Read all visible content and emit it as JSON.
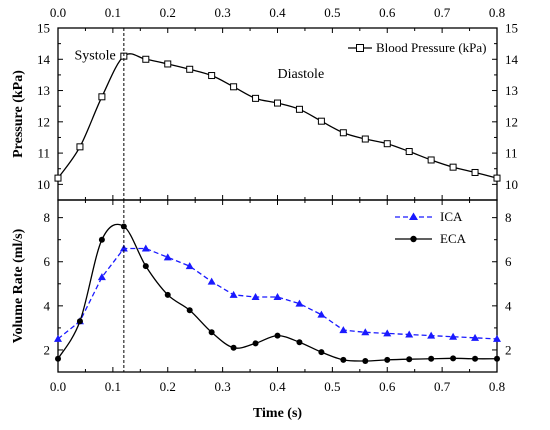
{
  "chart_data": [
    {
      "type": "line",
      "ylabel": "Pressure (kPa)",
      "xlim": [
        0,
        0.8
      ],
      "ylim": [
        9.5,
        15
      ],
      "x_ticks": [
        "0.0",
        "0.1",
        "0.2",
        "0.3",
        "0.4",
        "0.5",
        "0.6",
        "0.7",
        "0.8"
      ],
      "y_ticks": [
        "10",
        "11",
        "12",
        "13",
        "14",
        "15"
      ],
      "y_tick_values": [
        10,
        11,
        12,
        13,
        14,
        15
      ],
      "annotations": [
        {
          "text": "Systole",
          "x": 0.03,
          "y": 14.0
        },
        {
          "text": "Diastole",
          "x": 0.4,
          "y": 13.4
        }
      ],
      "series": [
        {
          "name": "Blood Pressure (kPa)",
          "color": "#000000",
          "marker": "open-square",
          "x": [
            0.0,
            0.04,
            0.08,
            0.12,
            0.16,
            0.2,
            0.24,
            0.28,
            0.32,
            0.36,
            0.4,
            0.44,
            0.48,
            0.52,
            0.56,
            0.6,
            0.64,
            0.68,
            0.72,
            0.76,
            0.8
          ],
          "y": [
            10.2,
            11.2,
            12.8,
            14.1,
            14.0,
            13.85,
            13.68,
            13.48,
            13.12,
            12.75,
            12.6,
            12.4,
            12.02,
            11.65,
            11.45,
            11.3,
            11.05,
            10.78,
            10.55,
            10.38,
            10.2
          ]
        }
      ],
      "legend": "top-right"
    },
    {
      "type": "line",
      "xlabel": "Time (s)",
      "ylabel": "Volume Rate (ml/s)",
      "xlim": [
        0,
        0.8
      ],
      "ylim": [
        1,
        8.8
      ],
      "x_ticks": [
        "0.0",
        "0.1",
        "0.2",
        "0.3",
        "0.4",
        "0.5",
        "0.6",
        "0.7",
        "0.8"
      ],
      "y_ticks": [
        "2",
        "4",
        "6",
        "8"
      ],
      "y_tick_values": [
        2,
        4,
        6,
        8
      ],
      "series": [
        {
          "name": "ICA",
          "color": "#1a1aff",
          "marker": "filled-triangle",
          "line_style": "dashed",
          "x": [
            0.0,
            0.04,
            0.08,
            0.12,
            0.16,
            0.2,
            0.24,
            0.28,
            0.32,
            0.36,
            0.4,
            0.44,
            0.48,
            0.52,
            0.56,
            0.6,
            0.64,
            0.68,
            0.72,
            0.76,
            0.8
          ],
          "y": [
            2.5,
            3.3,
            5.3,
            6.6,
            6.6,
            6.2,
            5.8,
            5.1,
            4.5,
            4.4,
            4.4,
            4.1,
            3.6,
            2.9,
            2.8,
            2.75,
            2.7,
            2.65,
            2.6,
            2.55,
            2.5
          ]
        },
        {
          "name": "ECA",
          "color": "#000000",
          "marker": "filled-circle",
          "line_style": "solid",
          "x": [
            0.0,
            0.04,
            0.08,
            0.12,
            0.16,
            0.2,
            0.24,
            0.28,
            0.32,
            0.36,
            0.4,
            0.44,
            0.48,
            0.52,
            0.56,
            0.6,
            0.64,
            0.68,
            0.72,
            0.76,
            0.8
          ],
          "y": [
            1.6,
            3.3,
            7.0,
            7.6,
            5.8,
            4.5,
            3.8,
            2.8,
            2.1,
            2.3,
            2.65,
            2.35,
            1.9,
            1.55,
            1.5,
            1.55,
            1.58,
            1.6,
            1.62,
            1.6,
            1.6
          ]
        }
      ],
      "legend": "top-right"
    }
  ],
  "reference_line_x": 0.12
}
